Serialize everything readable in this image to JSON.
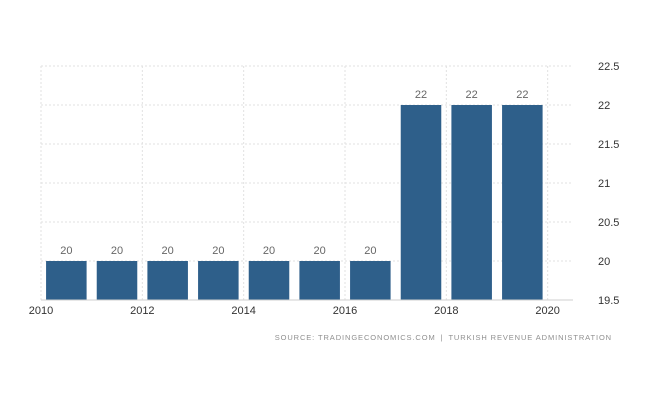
{
  "chart_data": {
    "type": "bar",
    "title": "",
    "xlabel": "",
    "ylabel": "",
    "x": [
      2011,
      2012,
      2013,
      2014,
      2015,
      2016,
      2017,
      2018,
      2019,
      2020
    ],
    "values": [
      20,
      20,
      20,
      20,
      20,
      20,
      20,
      22,
      22,
      22
    ],
    "data_labels": [
      "20",
      "20",
      "20",
      "20",
      "20",
      "20",
      "20",
      "22",
      "22",
      "22"
    ],
    "xlim": [
      2010,
      2020.5
    ],
    "ylim": [
      19.5,
      22.5
    ],
    "x_ticks": [
      "2010",
      "2012",
      "2014",
      "2016",
      "2018",
      "2020"
    ],
    "x_tick_values": [
      2010,
      2012,
      2014,
      2016,
      2018,
      2020
    ],
    "y_ticks": [
      "19.5",
      "20",
      "20.5",
      "21",
      "21.5",
      "22",
      "22.5"
    ],
    "y_tick_values": [
      19.5,
      20,
      20.5,
      21,
      21.5,
      22,
      22.5
    ],
    "y_axis_side": "right",
    "grid": true,
    "bar_color": "#2e5f8a",
    "grid_color": "#e2e2e2",
    "label_color": "#666666",
    "tick_color": "#333333"
  },
  "source": {
    "left": "SOURCE: TRADINGECONOMICS.COM",
    "separator": "|",
    "right": "TURKISH REVENUE ADMINISTRATION"
  }
}
